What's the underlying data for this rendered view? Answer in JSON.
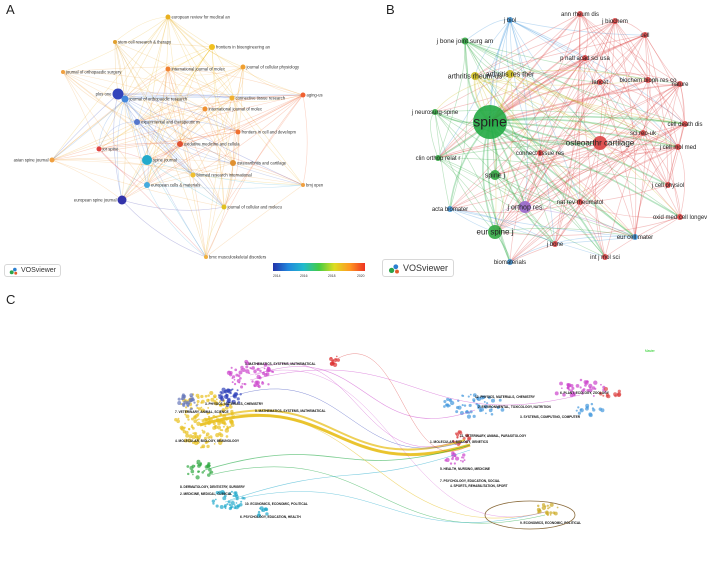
{
  "panels": {
    "a": {
      "label": "A",
      "brand": "VOSviewer",
      "scale_ticks": [
        "2014",
        "2016",
        "2018",
        "2020"
      ],
      "nodes": [
        {
          "label": "european review for medical an",
          "color": "#e8b020"
        },
        {
          "label": "stem cell research & therapy",
          "color": "#e0a030"
        },
        {
          "label": "frontiers in bioengineering an",
          "color": "#f0c020"
        },
        {
          "label": "journal of orthopaedic surgery",
          "color": "#f0a040"
        },
        {
          "label": "journal of cellular physiology",
          "color": "#f0a030"
        },
        {
          "label": "international journal of molec",
          "color": "#f08030"
        },
        {
          "label": "plos one",
          "color": "#3344bb"
        },
        {
          "label": "journal of orthopaedic research",
          "color": "#4488dd"
        },
        {
          "label": "connective tissue research",
          "color": "#f0b030"
        },
        {
          "label": "aging-us",
          "color": "#f06030"
        },
        {
          "label": "international journal of molec",
          "color": "#f09030"
        },
        {
          "label": "experimental and therapeutic m",
          "color": "#5577cc"
        },
        {
          "label": "frontiers in cell and developm",
          "color": "#f07030"
        },
        {
          "label": "oxidative medicine and cellula",
          "color": "#e05030"
        },
        {
          "label": "jor spine",
          "color": "#e04040"
        },
        {
          "label": "spine journal",
          "color": "#22aacc"
        },
        {
          "label": "asian spine journal",
          "color": "#f0a040"
        },
        {
          "label": "osteoarthritis and cartilage",
          "color": "#e09030"
        },
        {
          "label": "biomed research international",
          "color": "#f0c030"
        },
        {
          "label": "european cells & materials",
          "color": "#44aadd"
        },
        {
          "label": "bmj open",
          "color": "#f0a040"
        },
        {
          "label": "european spine journal",
          "color": "#3333aa"
        },
        {
          "label": "journal of cellular and molecu",
          "color": "#e0c020"
        },
        {
          "label": "bmc musculoskeletal disorders",
          "color": "#f0b040"
        }
      ]
    },
    "b": {
      "label": "B",
      "brand": "VOSviewer",
      "nodes": [
        {
          "label": "j biol",
          "color": "#4499dd"
        },
        {
          "label": "ann rheum dis",
          "color": "#dd4444"
        },
        {
          "label": "j biochem",
          "color": "#dd4444"
        },
        {
          "label": "cell",
          "color": "#dd4444"
        },
        {
          "label": "j bone joint surg am",
          "color": "#33aa44"
        },
        {
          "label": "p natl acad sci usa",
          "color": "#dd4444"
        },
        {
          "label": "arthritis rheum-us",
          "color": "#ccbb22"
        },
        {
          "label": "arthritis res ther",
          "color": "#ccbb22"
        },
        {
          "label": "lancet",
          "color": "#dd4444"
        },
        {
          "label": "biochem bioph res co",
          "color": "#dd4444"
        },
        {
          "label": "nature",
          "color": "#dd4444"
        },
        {
          "label": "j neurosurg-spine",
          "color": "#33aa44"
        },
        {
          "label": "spine",
          "color": "#22aa44"
        },
        {
          "label": "osteoarthr cartilage",
          "color": "#dd4444"
        },
        {
          "label": "sci rep-uk",
          "color": "#dd4444"
        },
        {
          "label": "cell death dis",
          "color": "#dd4444"
        },
        {
          "label": "clin orthop relat r",
          "color": "#33aa44"
        },
        {
          "label": "connect tissue res",
          "color": "#dd4444"
        },
        {
          "label": "j cell mol med",
          "color": "#dd4444"
        },
        {
          "label": "spine j",
          "color": "#33aa44"
        },
        {
          "label": "j cell physiol",
          "color": "#dd4444"
        },
        {
          "label": "j orthop res",
          "color": "#9966cc"
        },
        {
          "label": "nat rev rheumatol",
          "color": "#dd4444"
        },
        {
          "label": "oxid med cell longev",
          "color": "#dd4444"
        },
        {
          "label": "acta biomater",
          "color": "#4499dd"
        },
        {
          "label": "eur spine j",
          "color": "#33aa44"
        },
        {
          "label": "eur cell mater",
          "color": "#4499dd"
        },
        {
          "label": "j bone",
          "color": "#dd4444"
        },
        {
          "label": "int j mol sci",
          "color": "#dd4444"
        },
        {
          "label": "biomaterials",
          "color": "#4499dd"
        }
      ]
    },
    "c": {
      "label": "C",
      "left_labels": [
        {
          "text": "1. MATHEMATICS, SYSTEMS, MATHEMATICAL",
          "color": "#cc44aa"
        },
        {
          "text": "3. PHYSICS, MATERIALS, CHEMISTRY",
          "color": "#5555cc"
        },
        {
          "text": "7. VETERINARY, ANIMAL, SCIENCE",
          "color": "#7788bb"
        },
        {
          "text": "5. MATHEMATICS, SYSTEMS, MATHEMATICAL",
          "color": "#dd4444"
        },
        {
          "text": "4. MOLECULAR, BIOLOGY, IMMUNOLOGY",
          "color": "#ccaa22"
        },
        {
          "text": "8. DERMATOLOGY, DENTISTRY, SURGERY",
          "color": "#33aa44"
        },
        {
          "text": "2. MEDICINE, MEDICAL, CLINICAL",
          "color": "#33aa44"
        },
        {
          "text": "10. ECONOMICS, ECONOMIC, POLITICAL",
          "color": "#22aacc"
        },
        {
          "text": "6. PSYCHOLOGY, EDUCATION, HEALTH",
          "color": "#22aacc"
        }
      ],
      "right_labels": [
        {
          "text": "1. MOLECULAR, BIOLOGY, GENETICS",
          "color": "#ccaa22"
        },
        {
          "text": "2. ENVIRONMENTAL, TOXICOLOGY, NUTRITION",
          "color": "#ccaa22"
        },
        {
          "text": "3. SYSTEMS, COMPUTING, COMPUTER",
          "color": "#7788bb"
        },
        {
          "text": "11. VETERINARY, ANIMAL, PARASITOLOGY",
          "color": "#7788bb"
        },
        {
          "text": "5. HEALTH, NURSING, MEDICINE",
          "color": "#cc44aa"
        },
        {
          "text": "12. PHYSICS, MATERIALS, CHEMISTRY",
          "color": "#4499dd"
        },
        {
          "text": "6. PLANT, ECOLOGY, ZOOLOGY",
          "color": "#4499dd"
        },
        {
          "text": "7. PSYCHOLOGY, EDUCATION, SOCIAL",
          "color": "#cc44aa"
        },
        {
          "text": "4. SPORTS, REHABILITATION, SPORT",
          "color": "#dd4444"
        },
        {
          "text": "9. ECONOMICS, ECONOMIC, POLITICAL",
          "color": "#33aa44"
        }
      ],
      "corner_label": "Master"
    }
  }
}
